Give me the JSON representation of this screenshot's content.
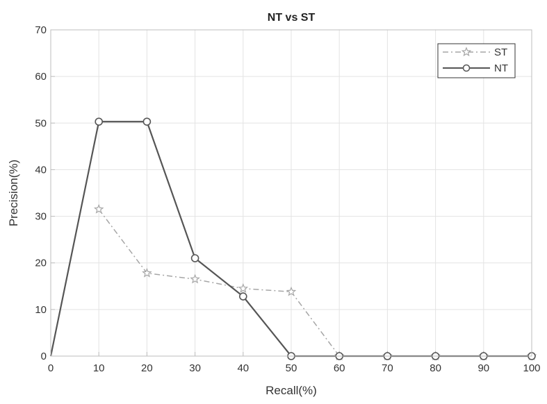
{
  "chart_data": {
    "type": "line",
    "title": "NT vs ST",
    "xlabel": "Recall(%)",
    "ylabel": "Precision(%)",
    "xlim": [
      0,
      100
    ],
    "ylim": [
      0,
      70
    ],
    "x_ticks": [
      0,
      10,
      20,
      30,
      40,
      50,
      60,
      70,
      80,
      90,
      100
    ],
    "y_ticks": [
      0,
      10,
      20,
      30,
      40,
      50,
      60,
      70
    ],
    "x_tick_labels": [
      "0",
      "10",
      "20",
      "30",
      "40",
      "50",
      "60",
      "70",
      "80",
      "90",
      "100"
    ],
    "y_tick_labels": [
      "0",
      "10",
      "20",
      "30",
      "40",
      "50",
      "60",
      "70"
    ],
    "grid": true,
    "legend_position": "top-right",
    "x": [
      10,
      20,
      30,
      40,
      50,
      60,
      70,
      80,
      90,
      100
    ],
    "series": [
      {
        "name": "ST",
        "values": [
          31.5,
          17.8,
          16.5,
          14.5,
          13.8,
          0,
          0,
          0,
          0,
          0
        ],
        "color": "#a6a6a6",
        "line_style": "dash-dot",
        "marker": "star"
      },
      {
        "name": "NT",
        "values": [
          50.3,
          50.3,
          21,
          12.8,
          0,
          0,
          0,
          0,
          0,
          0
        ],
        "color": "#555555",
        "line_style": "solid",
        "marker": "circle",
        "baseline_from": 0
      }
    ]
  }
}
